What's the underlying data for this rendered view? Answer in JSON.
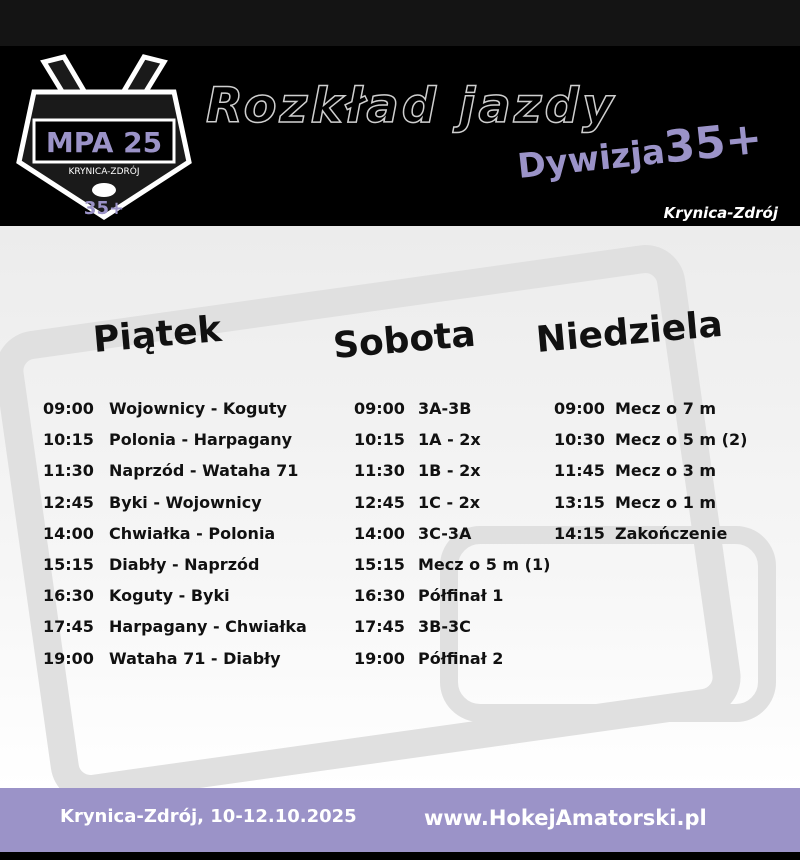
{
  "header": {
    "title": "Rozkład jazdy",
    "division_prefix": "Dywizja",
    "division_number": "35+",
    "city": "Krynica-Zdrój",
    "logo": {
      "text": "MPA 25",
      "subtitle": "KRYNICA-ZDRÓJ",
      "badge": "35+"
    }
  },
  "days": [
    {
      "name": "Piątek",
      "matches": [
        {
          "time": "09:00",
          "label": "Wojownicy - Koguty"
        },
        {
          "time": "10:15",
          "label": "Polonia - Harpagany"
        },
        {
          "time": "11:30",
          "label": "Naprzód - Wataha 71"
        },
        {
          "time": "12:45",
          "label": "Byki - Wojownicy"
        },
        {
          "time": "14:00",
          "label": "Chwiałka - Polonia"
        },
        {
          "time": "15:15",
          "label": "Diabły - Naprzód"
        },
        {
          "time": "16:30",
          "label": "Koguty - Byki"
        },
        {
          "time": "17:45",
          "label": "Harpagany - Chwiałka"
        },
        {
          "time": "19:00",
          "label": "Wataha 71 - Diabły"
        }
      ]
    },
    {
      "name": "Sobota",
      "matches": [
        {
          "time": "09:00",
          "label": "3A-3B"
        },
        {
          "time": "10:15",
          "label": "1A - 2x"
        },
        {
          "time": "11:30",
          "label": "1B - 2x"
        },
        {
          "time": "12:45",
          "label": "1C - 2x"
        },
        {
          "time": "14:00",
          "label": "3C-3A"
        },
        {
          "time": "15:15",
          "label": "Mecz o 5 m (1)"
        },
        {
          "time": "16:30",
          "label": "Półfinał 1"
        },
        {
          "time": "17:45",
          "label": "3B-3C"
        },
        {
          "time": "19:00",
          "label": "Półfinał 2"
        }
      ]
    },
    {
      "name": "Niedziela",
      "matches": [
        {
          "time": "09:00",
          "label": "Mecz o 7 m"
        },
        {
          "time": "10:30",
          "label": "Mecz o 5 m (2)"
        },
        {
          "time": "11:45",
          "label": "Mecz o 3 m"
        },
        {
          "time": "13:15",
          "label": "Mecz o 1 m"
        },
        {
          "time": "14:15",
          "label": "Zakończenie"
        }
      ]
    }
  ],
  "footer": {
    "place_dates": "Krynica-Zdrój, 10-12.10.2025",
    "website": "www.HokejAmatorski.pl"
  },
  "colors": {
    "accent": "#9b93c8",
    "header_bg": "#000000",
    "body_bg": "#efefef"
  }
}
